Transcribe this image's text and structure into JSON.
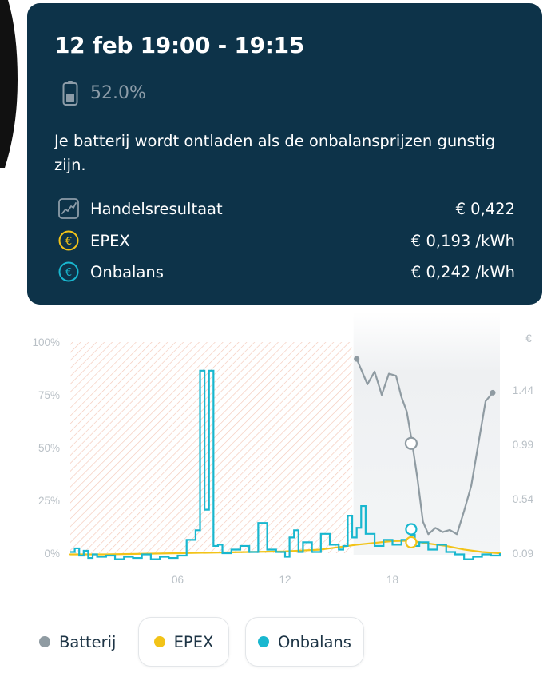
{
  "card": {
    "title": "12 feb 19:00 - 19:15",
    "battery_percentage": "52.0%",
    "description": "Je batterij wordt ontladen als de onbalansprijzen gunstig zijn.",
    "metrics": [
      {
        "icon": "trend-chart-icon",
        "label": "Handelsresultaat",
        "value": "€ 0,422"
      },
      {
        "icon": "euro-circle-icon",
        "label": "EPEX",
        "value": "€ 0,193 /kWh",
        "color": "#f2c318"
      },
      {
        "icon": "euro-circle-icon",
        "label": "Onbalans",
        "value": "€ 0,242 /kWh",
        "color": "#19b7cf"
      }
    ]
  },
  "colors": {
    "card_bg": "#0d3349",
    "battery": "#8f9ba2",
    "epex": "#f2c318",
    "onbalans": "#19b7cf",
    "hatch": "#f4c8b8"
  },
  "chart": {
    "left_ticks": [
      "100%",
      "75%",
      "50%",
      "25%",
      "0%"
    ],
    "right_unit": "€",
    "right_ticks": [
      "1.44",
      "0.99",
      "0.54",
      "0.09"
    ],
    "x_ticks": [
      "06",
      "12",
      "18"
    ]
  },
  "chart_data": {
    "type": "line",
    "x_unit": "hour of day",
    "xlim": [
      0,
      24
    ],
    "x_ticks": [
      "06",
      "12",
      "18"
    ],
    "left_axis": {
      "ylim": [
        0,
        100
      ],
      "unit": "%"
    },
    "right_axis": {
      "ticks": [
        0.09,
        0.54,
        0.99,
        1.44
      ],
      "unit": "€"
    },
    "past_region_end_hour": 16,
    "selected_hour": 19.0,
    "series": [
      {
        "name": "Batterij",
        "axis": "left",
        "color": "#8f9ba2",
        "x": [
          16.0,
          16.3,
          16.6,
          17.0,
          17.4,
          17.8,
          18.2,
          18.5,
          18.8,
          19.1,
          19.4,
          19.7,
          20.0,
          20.4,
          20.8,
          21.2,
          21.6,
          22.0,
          22.4,
          22.8,
          23.2,
          23.6
        ],
        "y": [
          92,
          86,
          80,
          86,
          75,
          85,
          84,
          74,
          67,
          52,
          35,
          15,
          9,
          12,
          10,
          11,
          9,
          20,
          32,
          52,
          72,
          76
        ]
      },
      {
        "name": "EPEX",
        "axis": "right",
        "color": "#f2c318",
        "x": [
          0,
          2,
          4,
          6,
          8,
          10,
          12,
          14,
          16,
          18,
          19,
          20,
          21,
          22,
          23,
          24
        ],
        "y": [
          0.08,
          0.08,
          0.085,
          0.09,
          0.095,
          0.1,
          0.105,
          0.12,
          0.16,
          0.19,
          0.193,
          0.17,
          0.15,
          0.12,
          0.1,
          0.09
        ]
      },
      {
        "name": "Onbalans",
        "axis": "right",
        "color": "#19b7cf",
        "x": [
          0,
          0.25,
          0.5,
          0.75,
          1,
          1.25,
          1.5,
          2,
          2.5,
          3,
          3.5,
          4,
          4.5,
          5,
          5.5,
          6,
          6.5,
          7,
          7.25,
          7.5,
          7.75,
          8,
          8.25,
          8.5,
          9,
          9.5,
          10,
          10.5,
          11,
          11.5,
          12,
          12.25,
          12.5,
          12.75,
          13,
          13.5,
          14,
          14.5,
          15,
          15.25,
          15.5,
          15.75,
          16,
          16.25,
          16.5,
          17,
          17.5,
          18,
          18.5,
          19,
          19.25,
          19.5,
          20,
          20.5,
          21,
          21.5,
          22,
          22.5,
          23,
          23.5,
          24
        ],
        "y": [
          0.1,
          0.13,
          0.07,
          0.11,
          0.05,
          0.08,
          0.06,
          0.07,
          0.04,
          0.06,
          0.05,
          0.08,
          0.04,
          0.06,
          0.05,
          0.07,
          0.2,
          0.28,
          1.6,
          0.45,
          1.6,
          0.15,
          0.16,
          0.09,
          0.12,
          0.15,
          0.1,
          0.34,
          0.12,
          0.1,
          0.06,
          0.22,
          0.28,
          0.1,
          0.18,
          0.1,
          0.25,
          0.16,
          0.12,
          0.15,
          0.4,
          0.22,
          0.3,
          0.48,
          0.25,
          0.15,
          0.2,
          0.16,
          0.2,
          0.242,
          0.15,
          0.18,
          0.12,
          0.16,
          0.1,
          0.08,
          0.04,
          0.06,
          0.08,
          0.07,
          0.09
        ]
      }
    ]
  },
  "legend": [
    {
      "label": "Batterij",
      "color": "#8f9ba2"
    },
    {
      "label": "EPEX",
      "color": "#f2c318"
    },
    {
      "label": "Onbalans",
      "color": "#19b7cf"
    }
  ]
}
